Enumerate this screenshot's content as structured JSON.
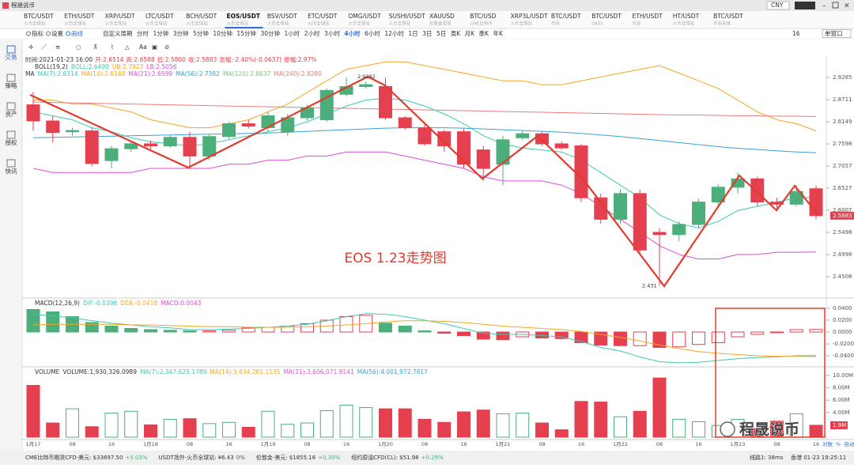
{
  "window": {
    "title": "程晟说币",
    "currency": "CNY"
  },
  "tabs": [
    {
      "symbol": "BTC/USDT",
      "exchange": "火币全球站"
    },
    {
      "symbol": "ETH/USDT",
      "exchange": "火币全球站"
    },
    {
      "symbol": "XRP/USDT",
      "exchange": "火币全球站"
    },
    {
      "symbol": "LTC/USDT",
      "exchange": "火币全球站"
    },
    {
      "symbol": "BCH/USDT",
      "exchange": "火币全球站"
    },
    {
      "symbol": "EOS/USDT",
      "exchange": "火币全球站",
      "selected": true
    },
    {
      "symbol": "BSV/USDT",
      "exchange": "火币全球站"
    },
    {
      "symbol": "ETC/USDT",
      "exchange": "火币全球站"
    },
    {
      "symbol": "OMG/USDT",
      "exchange": "火币全球站"
    },
    {
      "symbol": "SUSHI/USDT",
      "exchange": "火币全球站"
    },
    {
      "symbol": "XAUUSD",
      "exchange": "伦敦金现货"
    },
    {
      "symbol": "BTC/USD",
      "exchange": "CME比特币"
    },
    {
      "symbol": "XRP3L/USDT",
      "exchange": "火币全球站"
    },
    {
      "symbol": "BTC/USDT",
      "exchange": "币安"
    },
    {
      "symbol": "BTC/USDT",
      "exchange": "OKEx"
    },
    {
      "symbol": "ETH/USDT",
      "exchange": "币安"
    },
    {
      "symbol": "HT/USDT",
      "exchange": "火币全球站"
    },
    {
      "symbol": "BTC/USDT",
      "exchange": "币安永续"
    }
  ],
  "toolbar": {
    "tools": [
      "指标",
      "设置",
      "画线"
    ],
    "periods": [
      {
        "label": "自定义周期"
      },
      {
        "label": "分时"
      },
      {
        "label": "1分钟"
      },
      {
        "label": "3分钟"
      },
      {
        "label": "5分钟"
      },
      {
        "label": "10分钟"
      },
      {
        "label": "15分钟"
      },
      {
        "label": "30分钟"
      },
      {
        "label": "1小时"
      },
      {
        "label": "2小时"
      },
      {
        "label": "3小时"
      },
      {
        "label": "4小时",
        "selected": true
      },
      {
        "label": "6小时"
      },
      {
        "label": "12小时"
      },
      {
        "label": "1日"
      },
      {
        "label": "3日"
      },
      {
        "label": "5日"
      },
      {
        "label": "周K"
      },
      {
        "label": "月K"
      },
      {
        "label": "季K"
      },
      {
        "label": "年K"
      }
    ],
    "window_count": "16",
    "layout": "单窗口"
  },
  "sidebar": [
    "交易",
    "策略",
    "资产",
    "授权",
    "快讯"
  ],
  "chart_data": {
    "type": "candlestick",
    "info": [
      "时间:2021-01-23 16:00",
      "开:2.6514",
      "高:2.6588",
      "低:2.5800",
      "收:2.5883",
      "涨幅:-2.40%(-0.0637)",
      "振幅:2.97%"
    ],
    "boll_legend": [
      {
        "text": "BOLL(19,2)",
        "color": "#333333"
      },
      {
        "text": "BOLL:2.6490",
        "color": "#3ec9b0"
      },
      {
        "text": "UB:2.7923",
        "color": "#f5a623"
      },
      {
        "text": "LB:2.5056",
        "color": "#d94fd6"
      }
    ],
    "ma_legend": [
      {
        "text": "MA",
        "color": "#333333"
      },
      {
        "text": "MA(7):2.6314",
        "color": "#3ec9b0"
      },
      {
        "text": "MA(14):2.6168",
        "color": "#f5a623"
      },
      {
        "text": "MA(21):2.6599",
        "color": "#d94fd6"
      },
      {
        "text": "MA(56):2.7382",
        "color": "#3aa0d8"
      },
      {
        "text": "MA(120):2.8637",
        "color": "#7cc67c"
      },
      {
        "text": "MA(240):2.8280",
        "color": "#e87c7c"
      }
    ],
    "categories": [
      "1月17",
      null,
      "08",
      null,
      "16",
      null,
      "1月18",
      null,
      "08",
      null,
      "16",
      null,
      "1月19",
      null,
      "08",
      null,
      "16",
      null,
      "1月20",
      null,
      "08",
      null,
      "16",
      null,
      "1月21",
      null,
      "08",
      null,
      "16",
      null,
      "1月22",
      null,
      "08",
      null,
      "16",
      null,
      "1月23",
      null,
      "08",
      null,
      "16"
    ],
    "open": [
      2.858,
      2.817,
      2.79,
      2.792,
      2.719,
      2.748,
      2.76,
      2.755,
      2.776,
      2.73,
      2.778,
      2.81,
      2.8,
      2.79,
      2.825,
      2.82,
      2.885,
      2.905,
      2.905,
      2.825,
      2.8,
      2.79,
      2.79,
      2.745,
      2.71,
      2.775,
      2.785,
      2.76,
      2.755,
      2.63,
      2.58,
      2.64,
      2.55,
      2.545,
      2.568,
      2.62,
      2.655,
      2.675,
      2.62,
      2.615,
      2.6514
    ],
    "high": [
      2.891,
      2.83,
      2.8,
      2.8,
      2.755,
      2.765,
      2.768,
      2.782,
      2.79,
      2.783,
      2.815,
      2.82,
      2.84,
      2.835,
      2.858,
      2.9,
      2.9282,
      2.918,
      2.9282,
      2.83,
      2.808,
      2.795,
      2.798,
      2.755,
      2.78,
      2.792,
      2.79,
      2.766,
      2.76,
      2.64,
      2.65,
      2.65,
      2.56,
      2.575,
      2.628,
      2.662,
      2.69,
      2.68,
      2.63,
      2.66,
      2.6588
    ],
    "low": [
      2.792,
      2.764,
      2.78,
      2.705,
      2.7,
      2.74,
      2.748,
      2.75,
      2.7,
      2.72,
      2.772,
      2.798,
      2.79,
      2.78,
      2.818,
      2.815,
      2.88,
      2.9,
      2.82,
      2.795,
      2.755,
      2.74,
      2.7,
      2.67,
      2.66,
      2.77,
      2.755,
      2.745,
      2.62,
      2.57,
      2.57,
      2.5,
      2.431,
      2.53,
      2.56,
      2.61,
      2.64,
      2.61,
      2.605,
      2.61,
      2.58
    ],
    "close": [
      2.817,
      2.788,
      2.793,
      2.712,
      2.748,
      2.76,
      2.755,
      2.776,
      2.73,
      2.778,
      2.81,
      2.804,
      2.83,
      2.825,
      2.85,
      2.895,
      2.905,
      2.91,
      2.825,
      2.8,
      2.76,
      2.755,
      2.71,
      2.7,
      2.77,
      2.785,
      2.76,
      2.75,
      2.63,
      2.58,
      2.64,
      2.51,
      2.545,
      2.568,
      2.62,
      2.655,
      2.675,
      2.62,
      2.615,
      2.645,
      2.5883
    ],
    "up_color": "#4cae7a",
    "down_color": "#e5404f",
    "log": true,
    "ylim": [
      2.408,
      2.983
    ],
    "yticks": [
      2.9285,
      2.8711,
      2.8149,
      2.7598,
      2.7057,
      2.6527,
      2.6007,
      2.5498,
      2.4998,
      2.4508
    ],
    "lines": [
      {
        "color": "#f5a623",
        "values": [
          2.87,
          2.87,
          2.86,
          2.86,
          2.85,
          2.84,
          2.82,
          2.81,
          2.8,
          2.8,
          2.81,
          2.82,
          2.84,
          2.86,
          2.89,
          2.92,
          2.95,
          2.96,
          2.97,
          2.97,
          2.96,
          2.95,
          2.94,
          2.93,
          2.92,
          2.92,
          2.91,
          2.91,
          2.92,
          2.93,
          2.94,
          2.95,
          2.96,
          2.94,
          2.92,
          2.9,
          2.87,
          2.84,
          2.82,
          2.81,
          2.7923
        ]
      },
      {
        "color": "#d94fd6",
        "values": [
          2.7,
          2.69,
          2.69,
          2.69,
          2.69,
          2.69,
          2.7,
          2.7,
          2.7,
          2.7,
          2.71,
          2.71,
          2.72,
          2.72,
          2.73,
          2.73,
          2.74,
          2.74,
          2.74,
          2.73,
          2.72,
          2.71,
          2.7,
          2.68,
          2.67,
          2.67,
          2.67,
          2.66,
          2.64,
          2.61,
          2.58,
          2.55,
          2.52,
          2.5,
          2.49,
          2.49,
          2.5,
          2.5,
          2.505,
          2.505,
          2.5056
        ]
      },
      {
        "color": "#e87c7c",
        "values": [
          2.865,
          2.864,
          2.863,
          2.862,
          2.861,
          2.86,
          2.859,
          2.858,
          2.857,
          2.856,
          2.855,
          2.854,
          2.853,
          2.852,
          2.851,
          2.85,
          2.849,
          2.848,
          2.847,
          2.846,
          2.845,
          2.844,
          2.843,
          2.842,
          2.841,
          2.84,
          2.839,
          2.838,
          2.837,
          2.836,
          2.835,
          2.834,
          2.833,
          2.832,
          2.832,
          2.831,
          2.83,
          2.83,
          2.829,
          2.829,
          2.828
        ]
      },
      {
        "color": "#3aa0d8",
        "values": [
          2.775,
          2.776,
          2.777,
          2.778,
          2.779,
          2.78,
          2.781,
          2.782,
          2.783,
          2.784,
          2.785,
          2.786,
          2.787,
          2.789,
          2.791,
          2.793,
          2.795,
          2.797,
          2.799,
          2.8,
          2.8,
          2.8,
          2.799,
          2.797,
          2.795,
          2.793,
          2.791,
          2.789,
          2.786,
          2.782,
          2.778,
          2.773,
          2.768,
          2.763,
          2.758,
          2.753,
          2.749,
          2.746,
          2.743,
          2.74,
          2.7382
        ]
      },
      {
        "color": "#3ec9b0",
        "values": [
          2.84,
          2.83,
          2.82,
          2.8,
          2.79,
          2.775,
          2.765,
          2.76,
          2.755,
          2.76,
          2.77,
          2.78,
          2.79,
          2.8,
          2.815,
          2.835,
          2.855,
          2.87,
          2.875,
          2.87,
          2.855,
          2.835,
          2.81,
          2.78,
          2.76,
          2.75,
          2.745,
          2.74,
          2.72,
          2.69,
          2.66,
          2.63,
          2.59,
          2.57,
          2.56,
          2.575,
          2.6,
          2.61,
          2.62,
          2.63,
          2.6314
        ]
      }
    ],
    "annotation": "EOS 1.23走势图",
    "right_controls": [
      "对数",
      "%",
      "自动"
    ],
    "macd": {
      "legend": [
        {
          "text": "MACD(12,26,9)",
          "color": "#333333"
        },
        {
          "text": "DIF:-0.0396",
          "color": "#3ec9b0"
        },
        {
          "text": "DEA:-0.0418",
          "color": "#f5a623"
        },
        {
          "text": "MACD:0.0043",
          "color": "#d94fd6"
        }
      ],
      "values": [
        0.038,
        0.034,
        0.026,
        0.016,
        0.01,
        0.006,
        0.004,
        0.003,
        0.002,
        0.002,
        0.003,
        0.007,
        0.008,
        0.01,
        0.014,
        0.02,
        0.026,
        0.028,
        0.015,
        0.01,
        0.002,
        -0.002,
        -0.006,
        -0.012,
        -0.013,
        -0.008,
        -0.01,
        -0.011,
        -0.018,
        -0.022,
        -0.023,
        -0.023,
        -0.026,
        -0.025,
        -0.021,
        -0.018,
        -0.008,
        -0.004,
        -0.001,
        0.004,
        0.0043
      ],
      "dif": [
        0.03,
        0.027,
        0.024,
        0.019,
        0.015,
        0.012,
        0.009,
        0.007,
        0.004,
        0.004,
        0.005,
        0.006,
        0.008,
        0.01,
        0.013,
        0.019,
        0.026,
        0.031,
        0.03,
        0.026,
        0.02,
        0.014,
        0.006,
        -0.002,
        -0.004,
        -0.004,
        -0.006,
        -0.008,
        -0.016,
        -0.026,
        -0.032,
        -0.042,
        -0.05,
        -0.052,
        -0.051,
        -0.048,
        -0.045,
        -0.043,
        -0.042,
        -0.04,
        -0.0396
      ],
      "dea": [
        0.012,
        0.013,
        0.013,
        0.013,
        0.013,
        0.012,
        0.012,
        0.011,
        0.01,
        0.009,
        0.009,
        0.008,
        0.008,
        0.008,
        0.009,
        0.01,
        0.012,
        0.014,
        0.017,
        0.019,
        0.019,
        0.018,
        0.016,
        0.013,
        0.01,
        0.008,
        0.006,
        0.004,
        0.001,
        -0.004,
        -0.009,
        -0.015,
        -0.022,
        -0.028,
        -0.033,
        -0.036,
        -0.038,
        -0.04,
        -0.041,
        -0.041,
        -0.0418
      ],
      "dif_color": "#3ec9b0",
      "dea_color": "#f5a623",
      "ylim": [
        -0.056,
        0.0533
      ],
      "yticks": [
        {
          "value": 0.04,
          "label": "0.0400"
        },
        {
          "value": 0.02,
          "label": "0.0200"
        },
        {
          "value": 0,
          "label": "0.0000"
        },
        {
          "value": -0.02,
          "label": "-0.0200"
        },
        {
          "value": -0.04,
          "label": "-0.0400"
        }
      ]
    },
    "volume": {
      "legend": [
        {
          "text": "VOLUME",
          "color": "#333333"
        },
        {
          "text": "VOLUME:1,930,326.0989",
          "color": "#333333"
        },
        {
          "text": "MA(7):2,347,625.1789",
          "color": "#3ec9b0"
        },
        {
          "text": "MA(14):3,634,261.1135",
          "color": "#f5a623"
        },
        {
          "text": "MA(21):3,606,071.8141",
          "color": "#d94fd6"
        },
        {
          "text": "MA(56):4,001,972.7817",
          "color": "#3aa0d8"
        }
      ],
      "values": [
        8.4,
        2.3,
        4.6,
        1.7,
        3.9,
        4.2,
        2.0,
        2.9,
        3.0,
        2.2,
        2.4,
        1.6,
        4.2,
        2.1,
        2.3,
        4.3,
        5.2,
        4.8,
        4.6,
        4.6,
        2.9,
        2.4,
        4.1,
        4.4,
        3.8,
        3.9,
        2.3,
        1.2,
        5.8,
        5.7,
        3.3,
        4.2,
        9.6,
        2.9,
        2.5,
        1.9,
        2.9,
        1.4,
        2.6,
        3.8,
        1.93
      ],
      "value_labels": [
        null,
        null,
        null,
        null,
        null,
        null,
        null,
        null,
        null,
        null,
        null,
        null,
        null,
        null,
        null,
        null,
        null,
        null,
        null,
        null,
        null,
        null,
        null,
        null,
        null,
        null,
        null,
        null,
        null,
        null,
        null,
        null,
        null,
        null,
        null,
        null,
        null,
        null,
        null,
        null,
        "1.9M"
      ],
      "ylim": [
        0,
        10.9
      ],
      "yticks": [
        {
          "value": 10,
          "label": "10.00M"
        },
        {
          "value": 8,
          "label": "8.00M"
        },
        {
          "value": 6,
          "label": "6.00M"
        },
        {
          "value": 4,
          "label": "4.00M"
        }
      ]
    }
  },
  "status_bar": {
    "items": [
      {
        "name": "CME比特币期货CFD-美元:",
        "price": "$33697.50",
        "change": "+5.03%"
      },
      {
        "name": "USDT场外-火币全球站:",
        "price": "¥6.43",
        "change": "0%"
      },
      {
        "name": "伦敦金-美元:",
        "price": "$1855.18",
        "change": "+0.30%"
      },
      {
        "name": "纽约原油CFD(CL):",
        "price": "$51.98",
        "change": "+0.29%"
      }
    ],
    "latency": "线路1: 38ms",
    "clock": "香港 01-23 19:25:11"
  },
  "watermark": "程晟说币"
}
